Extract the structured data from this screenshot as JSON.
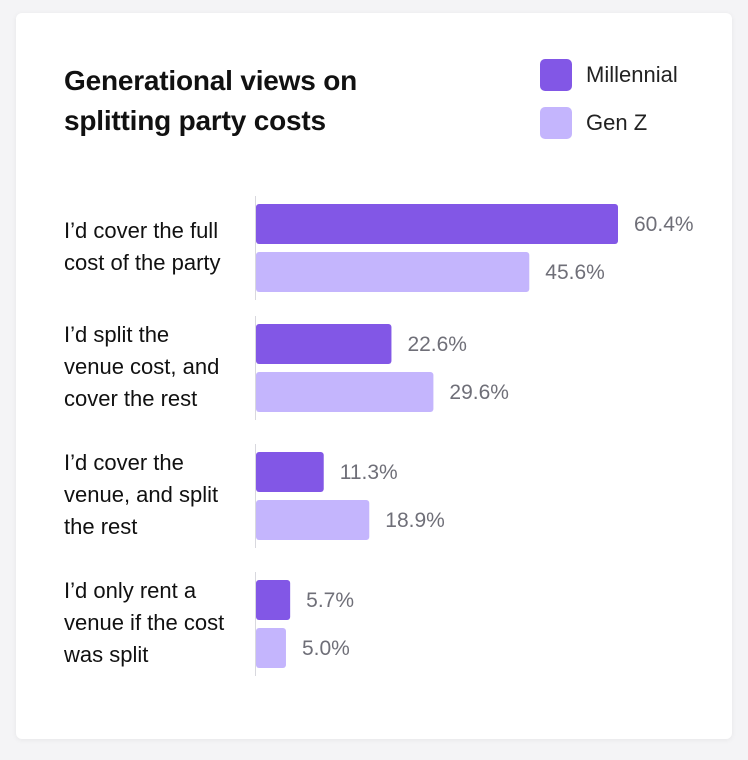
{
  "chart_data": {
    "type": "bar",
    "orientation": "horizontal",
    "title": "Generational views on splitting party costs",
    "categories": [
      [
        "I’d cover the full",
        "cost of the party"
      ],
      [
        "I’d split the",
        "venue cost, and",
        "cover the rest"
      ],
      [
        "I’d cover the",
        "venue, and split",
        "the rest"
      ],
      [
        "I’d only rent a",
        "venue if the cost",
        "was split"
      ]
    ],
    "series": [
      {
        "name": "Millennial",
        "values": [
          60.4,
          22.6,
          11.3,
          5.7
        ],
        "labels": [
          "60.4%",
          "22.6%",
          "11.3%",
          "5.7%"
        ],
        "color": "#8257e6"
      },
      {
        "name": "Gen Z",
        "values": [
          45.6,
          29.6,
          18.9,
          5.0
        ],
        "labels": [
          "45.6%",
          "29.6%",
          "18.9%",
          "5.0%"
        ],
        "color": "#c4b5fd"
      }
    ],
    "unit": "%",
    "xlim": [
      0,
      60.4
    ],
    "grid": false,
    "legend_position": "top-right"
  }
}
